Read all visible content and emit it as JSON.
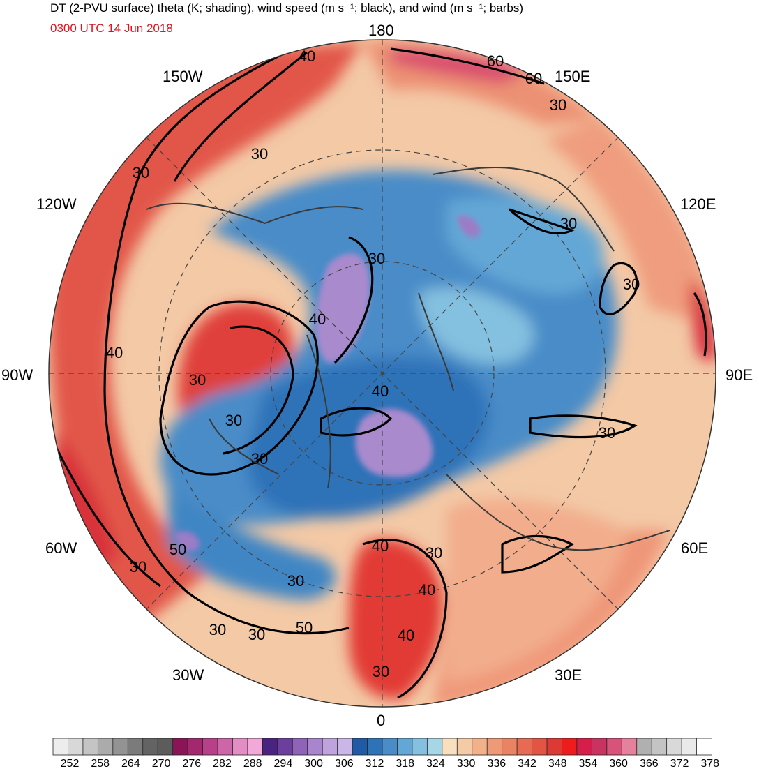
{
  "header": {
    "title": "DT (2-PVU surface) theta (K; shading), wind speed (m s⁻¹; black), and wind (m s⁻¹; barbs)",
    "valid_time": "0300 UTC 14 Jun 2018"
  },
  "map": {
    "projection": "north-polar-stereographic",
    "longitude_labels": {
      "n": "180",
      "s": "0",
      "w90": "90W",
      "e90": "90E",
      "w120": "120W",
      "e120": "120E",
      "w150": "150W",
      "e150": "150E",
      "w60": "60W",
      "e60": "60E",
      "w30": "30W",
      "e30": "30E"
    },
    "contour_labels": [
      "60",
      "60",
      "40",
      "30",
      "30",
      "30",
      "30",
      "30",
      "30",
      "40",
      "30",
      "40",
      "30",
      "30",
      "40",
      "40",
      "30",
      "50",
      "30",
      "30",
      "40",
      "50",
      "30",
      "30",
      "40",
      "30",
      "30"
    ]
  },
  "colorbar": {
    "labels": [
      "252",
      "258",
      "264",
      "270",
      "276",
      "282",
      "288",
      "294",
      "300",
      "306",
      "312",
      "318",
      "324",
      "330",
      "336",
      "342",
      "348",
      "354",
      "360",
      "366",
      "372",
      "378"
    ],
    "colors": [
      "#ededed",
      "#d8d8d8",
      "#c4c4c4",
      "#ababab",
      "#939393",
      "#7b7b7b",
      "#636363",
      "#5c5c5c",
      "#8a1456",
      "#a3296e",
      "#b8408a",
      "#cc66a8",
      "#e28ec5",
      "#f2a8d8",
      "#4a2382",
      "#6c3f9e",
      "#8e63b8",
      "#a885cc",
      "#bfa3dd",
      "#cab7e8",
      "#1f5aa6",
      "#2e72b8",
      "#4a8cc8",
      "#63a7d6",
      "#84c0df",
      "#a7d6e6",
      "#f7dfc0",
      "#f5caa6",
      "#f2b18b",
      "#ee9a76",
      "#ea8363",
      "#e66b52",
      "#e25444",
      "#dd3a36",
      "#ee1c1c",
      "#d61e4a",
      "#c83361",
      "#d9527a",
      "#e5819c",
      "#b0b0b0",
      "#c4c4c4",
      "#d9d9d9",
      "#eaeaea",
      "#ffffff"
    ]
  },
  "palette": {
    "warm": "#ec8a6a",
    "hot": "#e0463c",
    "peach": "#f6d1ad",
    "cold_light": "#9fd2e3",
    "cold": "#3f86c4",
    "cold_deep": "#1f5aa6",
    "purple": "#a98acd"
  }
}
